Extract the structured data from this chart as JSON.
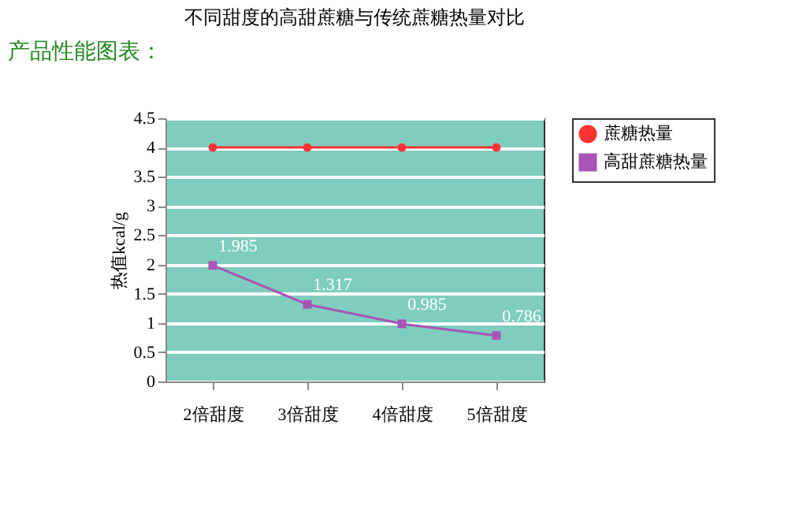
{
  "chart_data": {
    "type": "line",
    "title": "不同甜度的高甜蔗糖与传统蔗糖热量对比",
    "ylabel": "热值kcal/g",
    "annotations": [
      "产品性能图表："
    ],
    "categories": [
      "2倍甜度",
      "3倍甜度",
      "4倍甜度",
      "5倍甜度"
    ],
    "series": [
      {
        "name": "蔗糖热量",
        "color": "#ff3333",
        "marker": "circle",
        "values": [
          4,
          4,
          4,
          4
        ]
      },
      {
        "name": "高甜蔗糖热量",
        "color": "#a855b5",
        "marker": "square",
        "values": [
          1.985,
          1.317,
          0.985,
          0.786
        ],
        "value_labels": [
          "1.985",
          "1.317",
          "0.985",
          "0.786"
        ]
      }
    ],
    "ylim": [
      0,
      4.5
    ],
    "yticks": [
      0,
      0.5,
      1,
      1.5,
      2,
      2.5,
      3,
      3.5,
      4,
      4.5
    ],
    "grid": "y",
    "legend": "right"
  }
}
